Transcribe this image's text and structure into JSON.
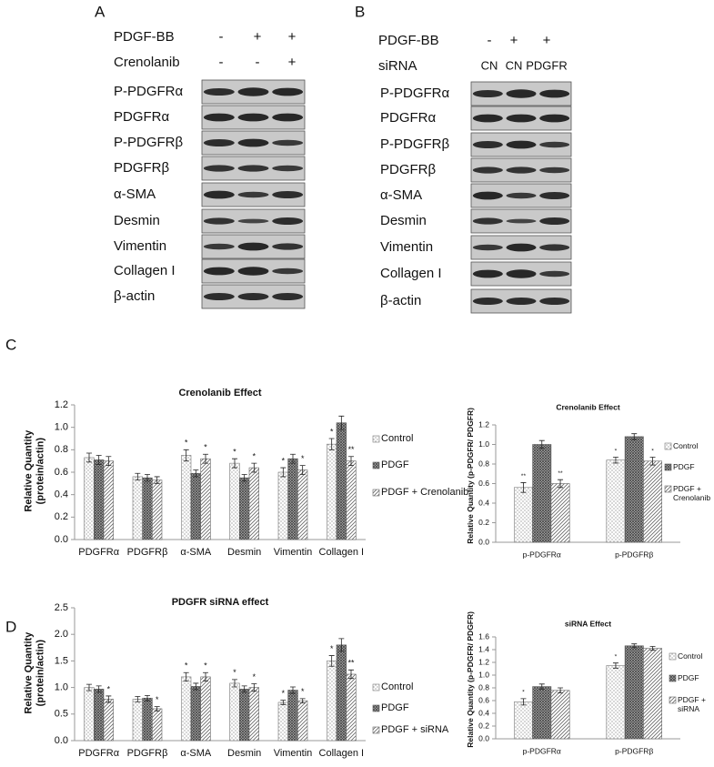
{
  "panels": [
    {
      "label": "A",
      "conditions": [
        {
          "name": "PDGF-BB",
          "values": [
            "-",
            "+",
            "+"
          ]
        },
        {
          "name": "Crenolanib",
          "values": [
            "-",
            "-",
            "+"
          ]
        }
      ],
      "proteins": [
        "P-PDGFRα",
        "PDGFRα",
        "P-PDGFRβ",
        "PDGFRβ",
        "α-SMA",
        "Desmin",
        "Vimentin",
        "Collagen I",
        "β-actin"
      ]
    },
    {
      "label": "B",
      "conditions": [
        {
          "name": "PDGF-BB",
          "values": [
            "-",
            "+",
            "+"
          ]
        },
        {
          "name": "siRNA",
          "values": [
            "CN",
            "CN",
            "PDGFR"
          ]
        }
      ],
      "proteins": [
        "P-PDGFRα",
        "PDGFRα",
        "P-PDGFRβ",
        "PDGFRβ",
        "α-SMA",
        "Desmin",
        "Vimentin",
        "Collagen I",
        "β-actin"
      ]
    }
  ],
  "chart_panels": [
    "C",
    "D"
  ],
  "chart_data": [
    {
      "type": "bar",
      "title": "Crenolanib Effect",
      "y_label": "Relative Quantity (protein/actin)",
      "categories": [
        "PDGFRα",
        "PDGFRβ",
        "α-SMA",
        "Desmin",
        "Vimentin",
        "Collagen I"
      ],
      "series": [
        {
          "name": "Control",
          "color": "#777777",
          "pattern": "dots",
          "values": [
            0.73,
            0.56,
            0.75,
            0.68,
            0.6,
            0.85
          ],
          "errors": [
            0.04,
            0.03,
            0.05,
            0.04,
            0.04,
            0.05
          ],
          "significance": [
            null,
            null,
            "*",
            "*",
            "*",
            "*"
          ]
        },
        {
          "name": "PDGF",
          "color": "#555555",
          "pattern": "grid",
          "values": [
            0.71,
            0.55,
            0.59,
            0.55,
            0.72,
            1.04
          ],
          "errors": [
            0.04,
            0.03,
            0.03,
            0.03,
            0.04,
            0.06
          ],
          "significance": [
            null,
            null,
            null,
            null,
            null,
            null
          ]
        },
        {
          "name": "PDGF + Crenolanib",
          "color": "#666666",
          "pattern": "hatch",
          "values": [
            0.7,
            0.53,
            0.72,
            0.64,
            0.62,
            0.7
          ],
          "errors": [
            0.04,
            0.03,
            0.04,
            0.04,
            0.04,
            0.04
          ],
          "significance": [
            null,
            null,
            "*",
            "*",
            "*",
            "**"
          ]
        }
      ],
      "ylim": [
        0,
        1.2
      ],
      "yticks": [
        {
          "value": 0,
          "label": "0.0"
        },
        0.2,
        0.4,
        0.6,
        0.8,
        {
          "value": 1,
          "label": "1.0"
        },
        1.2
      ],
      "grid": false,
      "legend": "right"
    },
    {
      "type": "bar",
      "title": "Crenolanib Effect",
      "y_label": "Relative Quantity (p-PDGFR/ PDGFR)",
      "categories": [
        "p-PDGFRα",
        "p-PDGFRβ"
      ],
      "series": [
        {
          "name": "Control",
          "color": "#777777",
          "pattern": "dots",
          "values": [
            0.56,
            0.84
          ],
          "errors": [
            0.05,
            0.03
          ],
          "significance": [
            "**",
            "*"
          ]
        },
        {
          "name": "PDGF",
          "color": "#555555",
          "pattern": "grid",
          "values": [
            1,
            1.08
          ],
          "errors": [
            0.04,
            0.03
          ],
          "significance": [
            null,
            null
          ]
        },
        {
          "name": "PDGF + Crenolanib",
          "color": "#666666",
          "pattern": "hatch",
          "values": [
            0.6,
            0.83
          ],
          "errors": [
            0.04,
            0.04
          ],
          "significance": [
            "**",
            "*"
          ]
        }
      ],
      "ylim": [
        0,
        1.2
      ],
      "yticks": [
        {
          "value": 0,
          "label": "0.0"
        },
        0.2,
        0.4,
        0.6,
        0.8,
        {
          "value": 1,
          "label": "1.0"
        },
        1.2
      ],
      "grid": false,
      "legend": "right"
    },
    {
      "type": "bar",
      "title": "PDGFR siRNA effect",
      "y_label": "Relative Quantity (protein/actin)",
      "categories": [
        "PDGFRα",
        "PDGFRβ",
        "α-SMA",
        "Desmin",
        "Vimentin",
        "Collagen I"
      ],
      "series": [
        {
          "name": "Control",
          "color": "#777777",
          "pattern": "dots",
          "values": [
            1,
            0.78,
            1.2,
            1.08,
            0.72,
            1.5
          ],
          "errors": [
            0.06,
            0.05,
            0.08,
            0.07,
            0.04,
            0.1
          ],
          "significance": [
            null,
            null,
            "*",
            "*",
            "*",
            "*"
          ]
        },
        {
          "name": "PDGF",
          "color": "#555555",
          "pattern": "grid",
          "values": [
            0.97,
            0.8,
            1.02,
            0.97,
            0.95,
            1.8
          ],
          "errors": [
            0.06,
            0.05,
            0.06,
            0.06,
            0.06,
            0.12
          ],
          "significance": [
            null,
            null,
            null,
            null,
            null,
            null
          ]
        },
        {
          "name": "PDGF + siRNA",
          "color": "#666666",
          "pattern": "hatch",
          "values": [
            0.78,
            0.6,
            1.2,
            1,
            0.75,
            1.25
          ],
          "errors": [
            0.06,
            0.04,
            0.08,
            0.07,
            0.04,
            0.08
          ],
          "significance": [
            "*",
            "*",
            "*",
            "*",
            "*",
            "**"
          ]
        }
      ],
      "ylim": [
        0,
        2.5
      ],
      "yticks": [
        {
          "value": 0,
          "label": "0.0"
        },
        0.5,
        {
          "value": 1,
          "label": "1.0"
        },
        1.5,
        {
          "value": 2,
          "label": "2.0"
        },
        2.5
      ],
      "grid": false,
      "legend": "right"
    },
    {
      "type": "bar",
      "title": "siRNA Effect",
      "y_label": "Relative Quantity (p-PDGFR/ PDGFR)",
      "categories": [
        "p-PDGFRα",
        "p-PDGFRβ"
      ],
      "series": [
        {
          "name": "Control",
          "color": "#777777",
          "pattern": "dots",
          "values": [
            0.58,
            1.15
          ],
          "errors": [
            0.05,
            0.04
          ],
          "significance": [
            "*",
            "*"
          ]
        },
        {
          "name": "PDGF",
          "color": "#555555",
          "pattern": "grid",
          "values": [
            0.82,
            1.46
          ],
          "errors": [
            0.04,
            0.03
          ],
          "significance": [
            null,
            null
          ]
        },
        {
          "name": "PDGF + siRNA",
          "color": "#666666",
          "pattern": "hatch",
          "values": [
            0.76,
            1.42
          ],
          "errors": [
            0.04,
            0.03
          ],
          "significance": [
            null,
            null
          ]
        }
      ],
      "ylim": [
        0,
        1.6
      ],
      "yticks": [
        {
          "value": 0,
          "label": "0.0"
        },
        0.2,
        0.4,
        0.6,
        0.8,
        {
          "value": 1,
          "label": "1.0"
        },
        1.2,
        1.4,
        1.6
      ],
      "grid": false,
      "legend": "right"
    }
  ]
}
